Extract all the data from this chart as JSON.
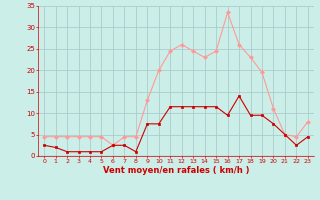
{
  "hours": [
    0,
    1,
    2,
    3,
    4,
    5,
    6,
    7,
    8,
    9,
    10,
    11,
    12,
    13,
    14,
    15,
    16,
    17,
    18,
    19,
    20,
    21,
    22,
    23
  ],
  "wind_avg": [
    2.5,
    2.0,
    1.0,
    1.0,
    1.0,
    1.0,
    2.5,
    2.5,
    1.0,
    7.5,
    7.5,
    11.5,
    11.5,
    11.5,
    11.5,
    11.5,
    9.5,
    14.0,
    9.5,
    9.5,
    7.5,
    5.0,
    2.5,
    4.5
  ],
  "wind_gust": [
    4.5,
    4.5,
    4.5,
    4.5,
    4.5,
    4.5,
    2.5,
    4.5,
    4.5,
    13.0,
    20.0,
    24.5,
    26.0,
    24.5,
    23.0,
    24.5,
    33.5,
    26.0,
    23.0,
    19.5,
    11.0,
    5.0,
    4.5,
    8.0
  ],
  "ylim": [
    0,
    35
  ],
  "yticks": [
    0,
    5,
    10,
    15,
    20,
    25,
    30,
    35
  ],
  "xlabel": "Vent moyen/en rafales ( km/h )",
  "bg_color": "#cceee8",
  "grid_color": "#aacccc",
  "avg_color": "#cc0000",
  "gust_color": "#ff9999"
}
